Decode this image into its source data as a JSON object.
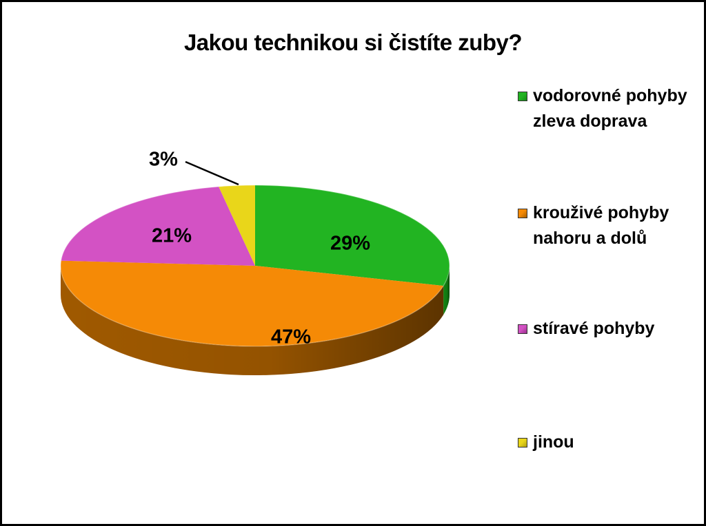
{
  "chart_data": {
    "type": "pie",
    "title": "Jakou technikou si čistíte zuby?",
    "slices": [
      {
        "label": "vodorovné pohyby zleva doprava",
        "value": 29,
        "display": "29%",
        "color": "#22b422",
        "side_color": "#138a13"
      },
      {
        "label": "krouživé pohyby nahoru a dolů",
        "value": 47,
        "display": "47%",
        "color": "#f58a06",
        "side_color": "#a85e00"
      },
      {
        "label": "stíravé pohyby",
        "value": 21,
        "display": "21%",
        "color": "#d352c4",
        "side_color": "#9a2e8c"
      },
      {
        "label": "jinou",
        "value": 3,
        "display": "3%",
        "color": "#e9d61a",
        "side_color": "#b0a010"
      }
    ],
    "legend_position": "right"
  }
}
